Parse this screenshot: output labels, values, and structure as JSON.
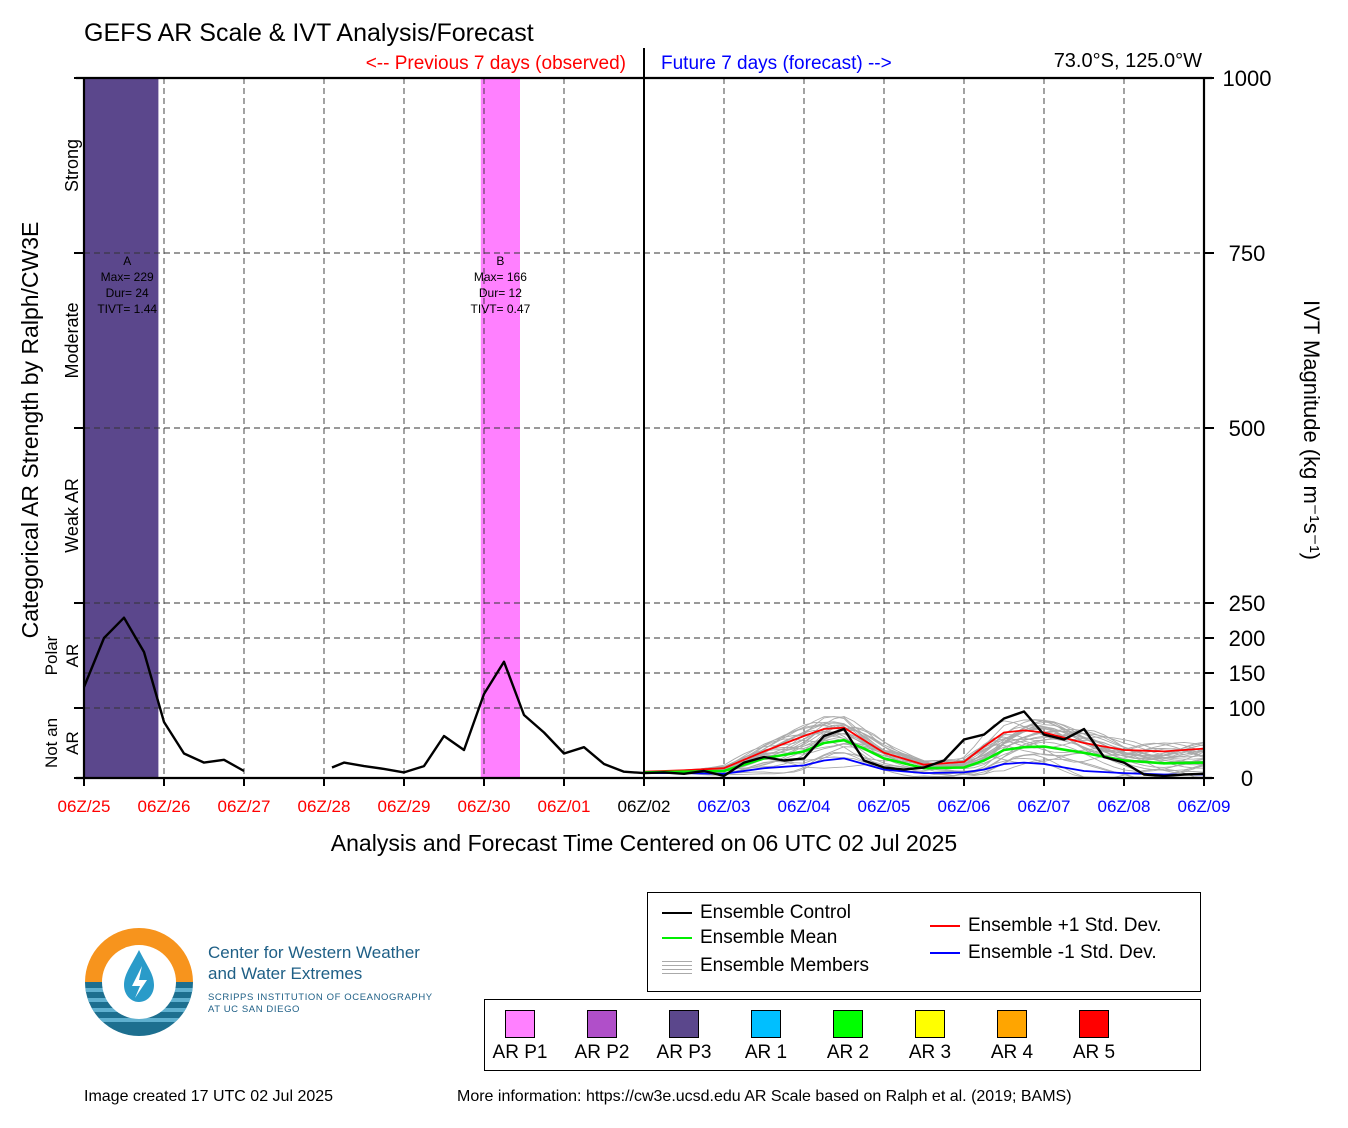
{
  "title": "GEFS AR Scale & IVT Analysis/Forecast",
  "observed_label": "<-- Previous 7 days (observed)",
  "forecast_label": "Future 7 days (forecast) -->",
  "location": "73.0°S, 125.0°W",
  "colors": {
    "observed": "#ff0000",
    "forecast": "#0000ff",
    "control": "#000000",
    "mean": "#00ee00",
    "plus_std": "#ff0000",
    "minus_std": "#0000ff",
    "members": "#aaaaaa"
  },
  "chart_data": {
    "type": "line",
    "xlabel": "Analysis and Forecast Time Centered on 06 UTC 02 Jul 2025",
    "ylabel_left": "Categorical AR Strength by Ralph/CW3E",
    "ylabel_right": "IVT Magnitude (kg m⁻¹s⁻¹)",
    "x_ticks": [
      "06Z/25",
      "06Z/26",
      "06Z/27",
      "06Z/28",
      "06Z/29",
      "06Z/30",
      "06Z/01",
      "06Z/02",
      "06Z/03",
      "06Z/04",
      "06Z/05",
      "06Z/06",
      "06Z/07",
      "06Z/08",
      "06Z/09"
    ],
    "x_tick_groups": [
      "observed",
      "observed",
      "observed",
      "observed",
      "observed",
      "observed",
      "observed",
      "center",
      "forecast",
      "forecast",
      "forecast",
      "forecast",
      "forecast",
      "forecast",
      "forecast"
    ],
    "x_range_days": [
      0,
      14
    ],
    "yticks_right": [
      0,
      100,
      150,
      200,
      250,
      500,
      750,
      1000
    ],
    "grid_lines_y": [
      100,
      150,
      200,
      250,
      500,
      750
    ],
    "category_labels": [
      {
        "label": "Not an AR",
        "from": 0,
        "to": 100
      },
      {
        "label": "Polar AR",
        "from": 100,
        "to": 250
      },
      {
        "label": "Weak AR",
        "from": 250,
        "to": 500
      },
      {
        "label": "Moderate",
        "from": 500,
        "to": 750
      },
      {
        "label": "Strong",
        "from": 750,
        "to": 1000
      }
    ],
    "ar_events": [
      {
        "id": "A",
        "category": "AR P3",
        "start_day": 0.0,
        "end_day": 0.93,
        "max": "Max= 229",
        "dur": "Dur= 24",
        "tivt": "TIVT= 1.44",
        "color": "#5b478c"
      },
      {
        "id": "B",
        "category": "AR P1",
        "start_day": 4.96,
        "end_day": 5.45,
        "max": "Max= 166",
        "dur": "Dur= 12",
        "tivt": "TIVT= 0.47",
        "color": "#ff80ff"
      }
    ],
    "series": [
      {
        "name": "Ensemble Control",
        "key": "control",
        "x": [
          0.0,
          0.25,
          0.5,
          0.75,
          1.0,
          1.25,
          1.5,
          1.75,
          2.0,
          3.1,
          3.25,
          3.5,
          3.75,
          4.0,
          4.25,
          4.5,
          4.75,
          5.0,
          5.25,
          5.5,
          5.75,
          6.0,
          6.25,
          6.5,
          6.75,
          7.0,
          7.25,
          7.5,
          7.75,
          8.0,
          8.25,
          8.5,
          8.75,
          9.0,
          9.25,
          9.5,
          9.75,
          10.0,
          10.25,
          10.5,
          10.75,
          11.0,
          11.25,
          11.5,
          11.75,
          12.0,
          12.25,
          12.5,
          12.75,
          13.0,
          13.25,
          13.5,
          13.75,
          14.0
        ],
        "y": [
          130,
          200,
          229,
          180,
          80,
          35,
          22,
          26,
          10,
          15,
          22,
          17,
          13,
          8,
          17,
          60,
          40,
          120,
          166,
          90,
          65,
          35,
          44,
          20,
          9,
          7,
          8,
          6,
          10,
          3,
          22,
          30,
          25,
          28,
          60,
          70,
          25,
          15,
          12,
          15,
          25,
          55,
          62,
          85,
          95,
          62,
          55,
          70,
          30,
          22,
          5,
          3,
          5,
          6
        ]
      },
      {
        "name": "Ensemble Mean",
        "key": "mean",
        "x": [
          7.0,
          7.5,
          8.0,
          8.5,
          9.0,
          9.25,
          9.5,
          9.75,
          10.0,
          10.5,
          11.0,
          11.25,
          11.5,
          11.75,
          12.0,
          12.5,
          13.0,
          13.5,
          14.0
        ],
        "y": [
          8,
          9,
          10,
          28,
          38,
          50,
          54,
          42,
          28,
          14,
          15,
          25,
          40,
          44,
          45,
          36,
          25,
          21,
          22
        ]
      },
      {
        "name": "Ensemble +1 Std. Dev.",
        "key": "plus_std",
        "x": [
          7.0,
          7.5,
          8.0,
          8.5,
          9.0,
          9.25,
          9.5,
          9.75,
          10.0,
          10.5,
          11.0,
          11.25,
          11.5,
          11.75,
          12.0,
          12.5,
          13.0,
          13.5,
          14.0
        ],
        "y": [
          9,
          11,
          14,
          38,
          60,
          70,
          72,
          54,
          36,
          19,
          23,
          45,
          65,
          68,
          65,
          50,
          40,
          38,
          42
        ]
      },
      {
        "name": "Ensemble -1 Std. Dev.",
        "key": "minus_std",
        "x": [
          7.0,
          7.5,
          8.0,
          8.5,
          9.0,
          9.25,
          9.5,
          9.75,
          10.0,
          10.5,
          11.0,
          11.25,
          11.5,
          11.75,
          12.0,
          12.5,
          13.0,
          13.5,
          14.0
        ],
        "y": [
          7,
          7,
          6,
          14,
          18,
          25,
          28,
          20,
          12,
          7,
          8,
          12,
          20,
          22,
          20,
          10,
          7,
          5,
          5
        ]
      }
    ],
    "members_label": "Ensemble Members",
    "members_count": 30
  },
  "legend": {
    "control": "Ensemble Control",
    "mean": "Ensemble Mean",
    "members": "Ensemble Members",
    "plus_std": "Ensemble +1 Std. Dev.",
    "minus_std": "Ensemble -1 Std. Dev."
  },
  "categories": [
    {
      "label": "AR P1",
      "color": "#ff80ff"
    },
    {
      "label": "AR P2",
      "color": "#b04fc9"
    },
    {
      "label": "AR P3",
      "color": "#5b478c"
    },
    {
      "label": "AR 1",
      "color": "#00bfff"
    },
    {
      "label": "AR 2",
      "color": "#00ff00"
    },
    {
      "label": "AR 3",
      "color": "#ffff00"
    },
    {
      "label": "AR 4",
      "color": "#ffa500"
    },
    {
      "label": "AR 5",
      "color": "#ff0000"
    }
  ],
  "logo": {
    "line1": "Center for Western Weather",
    "line2": "and Water Extremes",
    "line3": "SCRIPPS INSTITUTION OF OCEANOGRAPHY",
    "line4": "AT UC SAN DIEGO",
    "icon": "cw3e-logo-icon"
  },
  "footer": {
    "created": "Image created 17 UTC 02 Jul 2025",
    "info": "More information: https://cw3e.ucsd.edu AR Scale based on Ralph et al. (2019; BAMS)"
  }
}
